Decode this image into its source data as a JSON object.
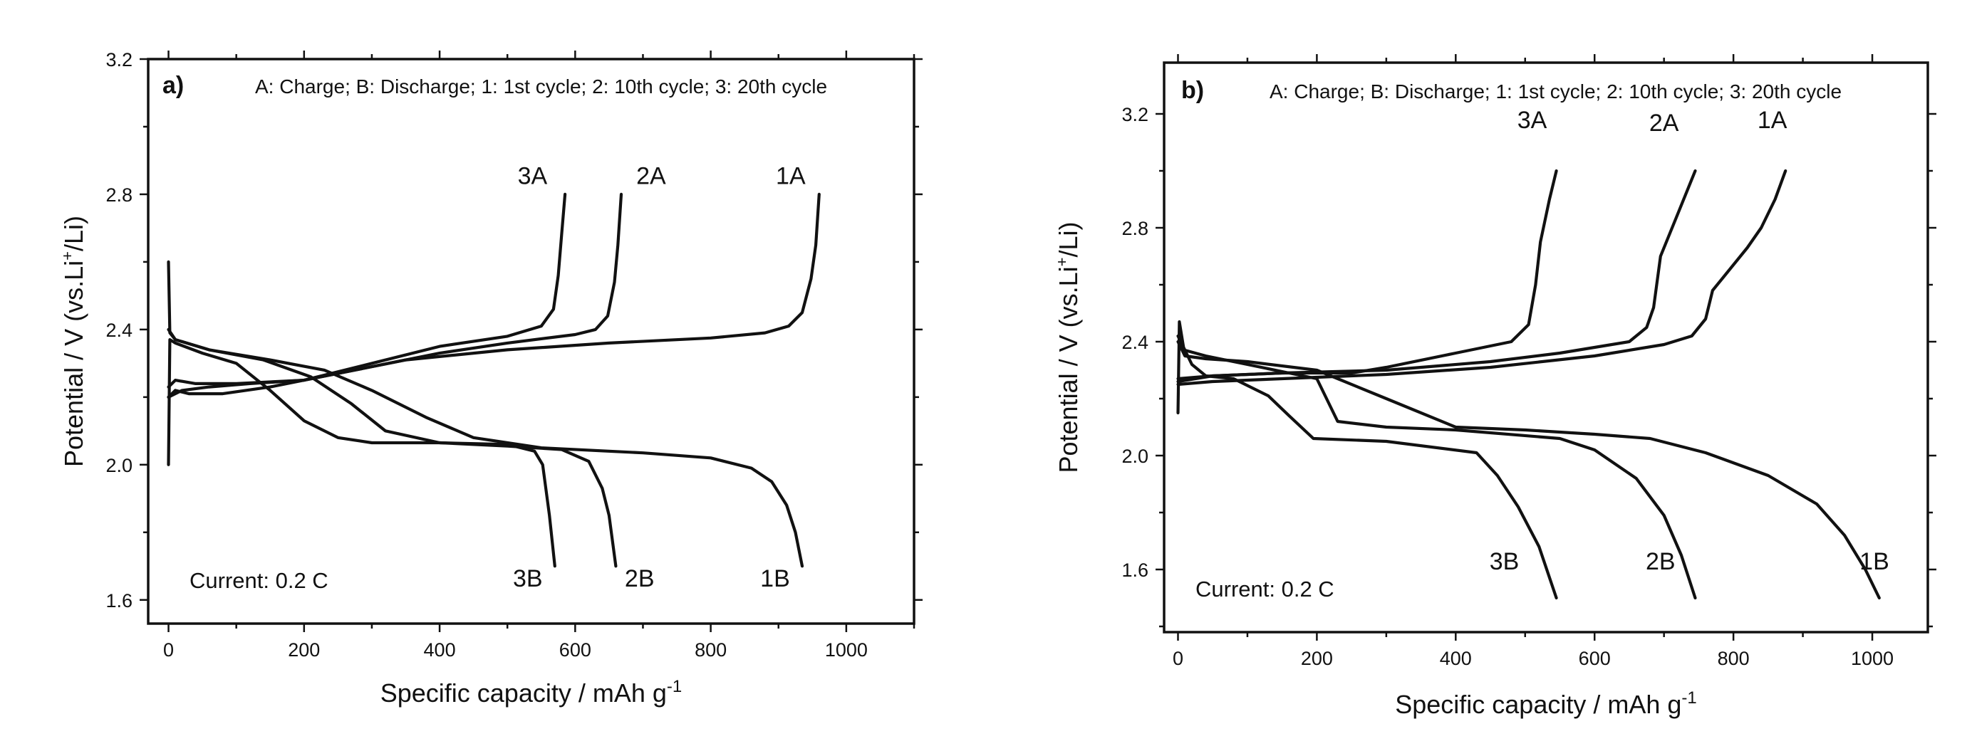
{
  "chart_data": [
    {
      "type": "line",
      "panel_label": "a)",
      "legend_text": "A: Charge; B: Discharge; 1: 1st cycle; 2: 10th cycle; 3: 20th cycle",
      "annotation": "Current: 0.2 C",
      "xlabel": "Specific capacity / mAh g",
      "xlabel_sup": "-1",
      "ylabel_pre": "Potential / V (vs.Li",
      "ylabel_sup": "+",
      "ylabel_post": "/Li)",
      "xlim": [
        -30,
        1100
      ],
      "ylim": [
        1.53,
        3.2
      ],
      "xticks": [
        0,
        200,
        400,
        600,
        800,
        1000
      ],
      "xtick_labels": [
        "0",
        "200",
        "400",
        "600",
        "800",
        "1000"
      ],
      "yticks": [
        1.6,
        2.0,
        2.4,
        2.8,
        3.2
      ],
      "ytick_labels": [
        "1.6",
        "2.0",
        "2.4",
        "2.8",
        "3.2"
      ],
      "grid": false,
      "series": [
        {
          "name": "1A",
          "label_at": [
            918,
            2.83
          ],
          "points": [
            [
              0,
              2.2
            ],
            [
              10,
              2.22
            ],
            [
              30,
              2.21
            ],
            [
              80,
              2.21
            ],
            [
              150,
              2.23
            ],
            [
              250,
              2.27
            ],
            [
              350,
              2.31
            ],
            [
              500,
              2.34
            ],
            [
              650,
              2.36
            ],
            [
              800,
              2.375
            ],
            [
              880,
              2.39
            ],
            [
              915,
              2.41
            ],
            [
              935,
              2.45
            ],
            [
              948,
              2.55
            ],
            [
              955,
              2.65
            ],
            [
              960,
              2.8
            ]
          ]
        },
        {
          "name": "1B",
          "label_at": [
            895,
            1.64
          ],
          "points": [
            [
              0,
              2.6
            ],
            [
              2,
              2.39
            ],
            [
              10,
              2.37
            ],
            [
              60,
              2.34
            ],
            [
              150,
              2.31
            ],
            [
              230,
              2.28
            ],
            [
              300,
              2.22
            ],
            [
              380,
              2.14
            ],
            [
              450,
              2.08
            ],
            [
              550,
              2.05
            ],
            [
              700,
              2.035
            ],
            [
              800,
              2.02
            ],
            [
              860,
              1.99
            ],
            [
              890,
              1.95
            ],
            [
              912,
              1.88
            ],
            [
              925,
              1.8
            ],
            [
              935,
              1.7
            ]
          ]
        },
        {
          "name": "2A",
          "label_at": [
            712,
            2.83
          ],
          "points": [
            [
              0,
              2.23
            ],
            [
              10,
              2.25
            ],
            [
              40,
              2.24
            ],
            [
              100,
              2.24
            ],
            [
              200,
              2.25
            ],
            [
              300,
              2.29
            ],
            [
              400,
              2.33
            ],
            [
              500,
              2.36
            ],
            [
              600,
              2.385
            ],
            [
              630,
              2.4
            ],
            [
              648,
              2.44
            ],
            [
              658,
              2.54
            ],
            [
              663,
              2.65
            ],
            [
              668,
              2.8
            ]
          ]
        },
        {
          "name": "2B",
          "label_at": [
            695,
            1.64
          ],
          "points": [
            [
              0,
              2.4
            ],
            [
              10,
              2.37
            ],
            [
              60,
              2.34
            ],
            [
              140,
              2.31
            ],
            [
              210,
              2.26
            ],
            [
              270,
              2.18
            ],
            [
              320,
              2.1
            ],
            [
              400,
              2.065
            ],
            [
              500,
              2.055
            ],
            [
              580,
              2.045
            ],
            [
              620,
              2.01
            ],
            [
              640,
              1.93
            ],
            [
              650,
              1.85
            ],
            [
              660,
              1.7
            ]
          ]
        },
        {
          "name": "3A",
          "label_at": [
            537,
            2.83
          ],
          "points": [
            [
              0,
              2.2
            ],
            [
              20,
              2.22
            ],
            [
              60,
              2.23
            ],
            [
              120,
              2.24
            ],
            [
              200,
              2.25
            ],
            [
              300,
              2.3
            ],
            [
              400,
              2.35
            ],
            [
              500,
              2.38
            ],
            [
              550,
              2.41
            ],
            [
              568,
              2.46
            ],
            [
              575,
              2.56
            ],
            [
              580,
              2.68
            ],
            [
              585,
              2.8
            ]
          ]
        },
        {
          "name": "3B",
          "label_at": [
            530,
            1.64
          ],
          "points": [
            [
              0,
              2.0
            ],
            [
              2,
              2.37
            ],
            [
              10,
              2.36
            ],
            [
              50,
              2.33
            ],
            [
              100,
              2.3
            ],
            [
              150,
              2.22
            ],
            [
              200,
              2.13
            ],
            [
              250,
              2.08
            ],
            [
              300,
              2.065
            ],
            [
              400,
              2.065
            ],
            [
              500,
              2.06
            ],
            [
              540,
              2.04
            ],
            [
              552,
              2.0
            ],
            [
              562,
              1.85
            ],
            [
              570,
              1.7
            ]
          ]
        }
      ]
    },
    {
      "type": "line",
      "panel_label": "b)",
      "legend_text": "A: Charge; B: Discharge; 1: 1st cycle; 2: 10th cycle; 3: 20th cycle",
      "annotation": "Current: 0.2 C",
      "xlabel": "Specific capacity / mAh g",
      "xlabel_sup": "-1",
      "ylabel_pre": "Potential / V (vs.Li",
      "ylabel_sup": "+",
      "ylabel_post": "/Li)",
      "xlim": [
        -20,
        1080
      ],
      "ylim": [
        1.38,
        3.38
      ],
      "xticks": [
        0,
        200,
        400,
        600,
        800,
        1000
      ],
      "xtick_labels": [
        "0",
        "200",
        "400",
        "600",
        "800",
        "1000"
      ],
      "yticks": [
        1.6,
        2.0,
        2.4,
        2.8,
        3.2
      ],
      "ytick_labels": [
        "1.6",
        "2.0",
        "2.4",
        "2.8",
        "3.2"
      ],
      "grid": false,
      "series": [
        {
          "name": "1A",
          "label_at": [
            856,
            3.15
          ],
          "points": [
            [
              0,
              2.25
            ],
            [
              50,
              2.26
            ],
            [
              150,
              2.27
            ],
            [
              300,
              2.285
            ],
            [
              450,
              2.31
            ],
            [
              600,
              2.35
            ],
            [
              700,
              2.39
            ],
            [
              740,
              2.42
            ],
            [
              760,
              2.48
            ],
            [
              770,
              2.58
            ],
            [
              790,
              2.64
            ],
            [
              820,
              2.73
            ],
            [
              840,
              2.8
            ],
            [
              860,
              2.9
            ],
            [
              875,
              3.0
            ]
          ]
        },
        {
          "name": "1B",
          "label_at": [
            1003,
            1.6
          ],
          "points": [
            [
              0,
              2.4
            ],
            [
              10,
              2.35
            ],
            [
              40,
              2.34
            ],
            [
              100,
              2.33
            ],
            [
              200,
              2.3
            ],
            [
              300,
              2.2
            ],
            [
              400,
              2.1
            ],
            [
              500,
              2.09
            ],
            [
              600,
              2.075
            ],
            [
              680,
              2.06
            ],
            [
              760,
              2.01
            ],
            [
              850,
              1.93
            ],
            [
              920,
              1.83
            ],
            [
              960,
              1.72
            ],
            [
              990,
              1.6
            ],
            [
              1010,
              1.5
            ]
          ]
        },
        {
          "name": "2A",
          "label_at": [
            700,
            3.14
          ],
          "points": [
            [
              0,
              2.26
            ],
            [
              50,
              2.28
            ],
            [
              150,
              2.29
            ],
            [
              300,
              2.3
            ],
            [
              450,
              2.33
            ],
            [
              550,
              2.36
            ],
            [
              650,
              2.4
            ],
            [
              675,
              2.45
            ],
            [
              685,
              2.52
            ],
            [
              695,
              2.7
            ],
            [
              720,
              2.85
            ],
            [
              745,
              3.0
            ]
          ]
        },
        {
          "name": "2B",
          "label_at": [
            695,
            1.6
          ],
          "points": [
            [
              0,
              2.42
            ],
            [
              10,
              2.37
            ],
            [
              40,
              2.35
            ],
            [
              100,
              2.32
            ],
            [
              160,
              2.29
            ],
            [
              200,
              2.27
            ],
            [
              230,
              2.12
            ],
            [
              300,
              2.1
            ],
            [
              400,
              2.09
            ],
            [
              550,
              2.06
            ],
            [
              600,
              2.02
            ],
            [
              660,
              1.92
            ],
            [
              700,
              1.79
            ],
            [
              725,
              1.65
            ],
            [
              745,
              1.5
            ]
          ]
        },
        {
          "name": "3A",
          "label_at": [
            510,
            3.15
          ],
          "points": [
            [
              0,
              2.27
            ],
            [
              50,
              2.28
            ],
            [
              150,
              2.29
            ],
            [
              250,
              2.29
            ],
            [
              300,
              2.31
            ],
            [
              400,
              2.36
            ],
            [
              480,
              2.4
            ],
            [
              505,
              2.46
            ],
            [
              515,
              2.6
            ],
            [
              522,
              2.75
            ],
            [
              535,
              2.9
            ],
            [
              545,
              3.0
            ]
          ]
        },
        {
          "name": "3B",
          "label_at": [
            470,
            1.6
          ],
          "points": [
            [
              0,
              2.15
            ],
            [
              2,
              2.47
            ],
            [
              8,
              2.38
            ],
            [
              20,
              2.32
            ],
            [
              40,
              2.28
            ],
            [
              80,
              2.27
            ],
            [
              130,
              2.21
            ],
            [
              160,
              2.14
            ],
            [
              195,
              2.06
            ],
            [
              300,
              2.05
            ],
            [
              430,
              2.01
            ],
            [
              460,
              1.93
            ],
            [
              490,
              1.82
            ],
            [
              520,
              1.68
            ],
            [
              545,
              1.5
            ]
          ]
        }
      ]
    }
  ]
}
